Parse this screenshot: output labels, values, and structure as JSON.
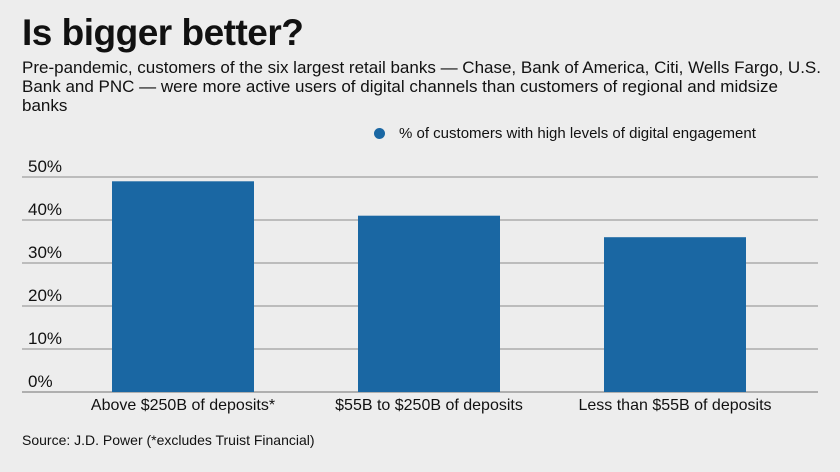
{
  "header": {
    "title": "Is bigger better?",
    "subtitle": "Pre-pandemic, customers of the six largest retail banks — Chase, Bank of America, Citi, Wells Fargo, U.S. Bank and PNC — were more active users of digital channels than customers of regional and midsize banks"
  },
  "legend": {
    "label": "% of customers with high levels of digital engagement"
  },
  "colors": {
    "bar": "#1a67a3",
    "grid": "#8a8a8a",
    "background": "#ededed"
  },
  "chart_data": {
    "type": "bar",
    "title": "Is bigger better?",
    "categories": [
      "Above $250B of deposits*",
      "$55B to $250B of deposits",
      "Less than $55B of deposits"
    ],
    "series": [
      {
        "name": "% of customers with high levels of digital engagement",
        "values": [
          49,
          41,
          36
        ]
      }
    ],
    "ylim": [
      0,
      50
    ],
    "yticks": [
      0,
      10,
      20,
      30,
      40,
      50
    ],
    "ytick_labels": [
      "0%",
      "10%",
      "20%",
      "30%",
      "40%",
      "50%"
    ],
    "grid": true,
    "legend_position": "top-right"
  },
  "footer": {
    "source": "Source: J.D. Power (*excludes Truist Financial)"
  }
}
